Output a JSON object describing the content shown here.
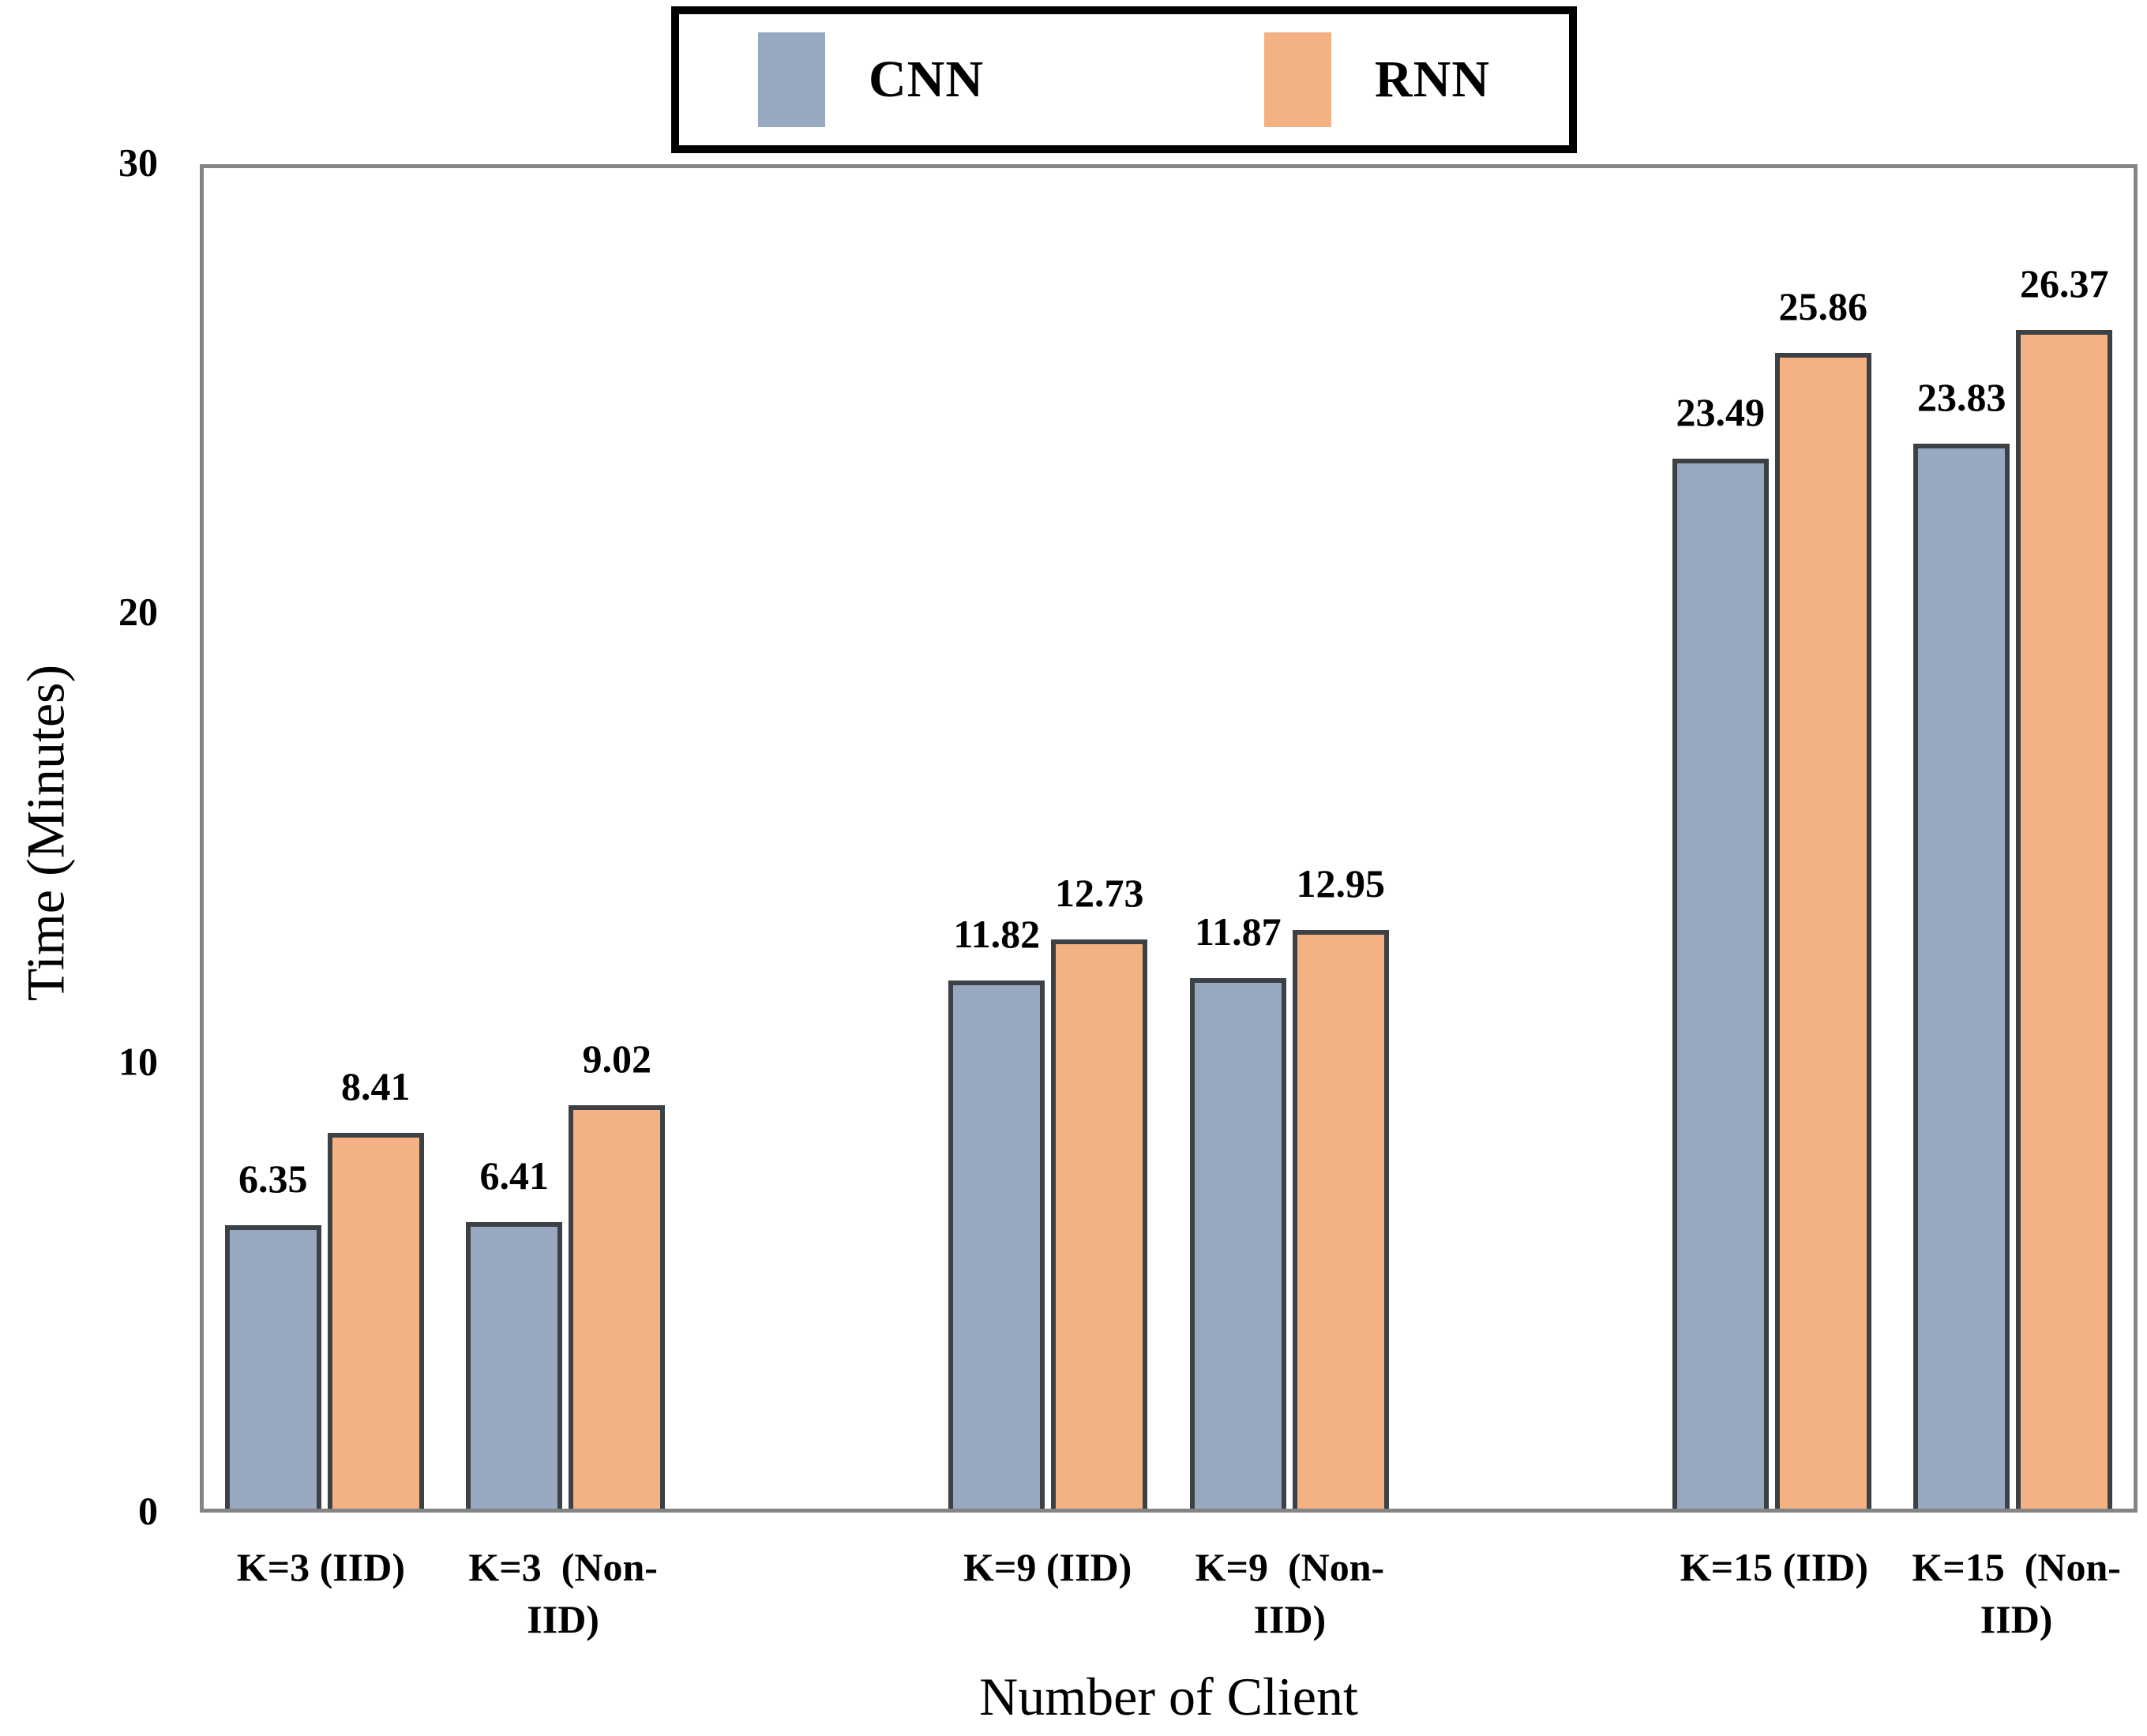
{
  "legend": {
    "items": [
      {
        "label": "CNN",
        "color": "#97A8C0"
      },
      {
        "label": "RNN",
        "color": "#F4B183"
      }
    ]
  },
  "axes": {
    "y_title": "Time (Minutes)",
    "x_title": "Number of Client"
  },
  "chart_data": {
    "type": "bar",
    "title": "",
    "xlabel": "Number of Client",
    "ylabel": "Time (Minutes)",
    "ylim": [
      0,
      30
    ],
    "yticks": [
      30,
      20,
      10,
      0
    ],
    "grid": false,
    "legend_position": "top-center",
    "categories": [
      "K=3 (IID)",
      "K=3 (Non-IID)",
      "K=9 (IID)",
      "K=9 (Non-IID)",
      "K=15 (IID)",
      "K=15 (Non-IID)"
    ],
    "category_label_lines": [
      [
        "K=3 (IID)"
      ],
      [
        "K=3  (Non-",
        "IID)"
      ],
      [
        "K=9 (IID)"
      ],
      [
        "K=9  (Non-",
        "IID)"
      ],
      [
        "K=15 (IID)"
      ],
      [
        "K=15  (Non-",
        "IID)"
      ]
    ],
    "series": [
      {
        "name": "CNN",
        "color": "#97A8C0",
        "values": [
          6.35,
          6.41,
          11.82,
          11.87,
          23.49,
          23.83
        ]
      },
      {
        "name": "RNN",
        "color": "#F4B183",
        "values": [
          8.41,
          9.02,
          12.73,
          12.95,
          25.86,
          26.37
        ]
      }
    ],
    "value_labels": [
      [
        "6.35",
        "6.41",
        "11.82",
        "11.87",
        "23.49",
        "23.83"
      ],
      [
        "8.41",
        "9.02",
        "12.73",
        "12.95",
        "25.86",
        "26.37"
      ]
    ],
    "bar_border_color": "#3C4145",
    "axis_border_color": "#848484",
    "slot_layout": [
      0,
      1,
      -1,
      2,
      3,
      -1,
      4,
      5
    ]
  }
}
